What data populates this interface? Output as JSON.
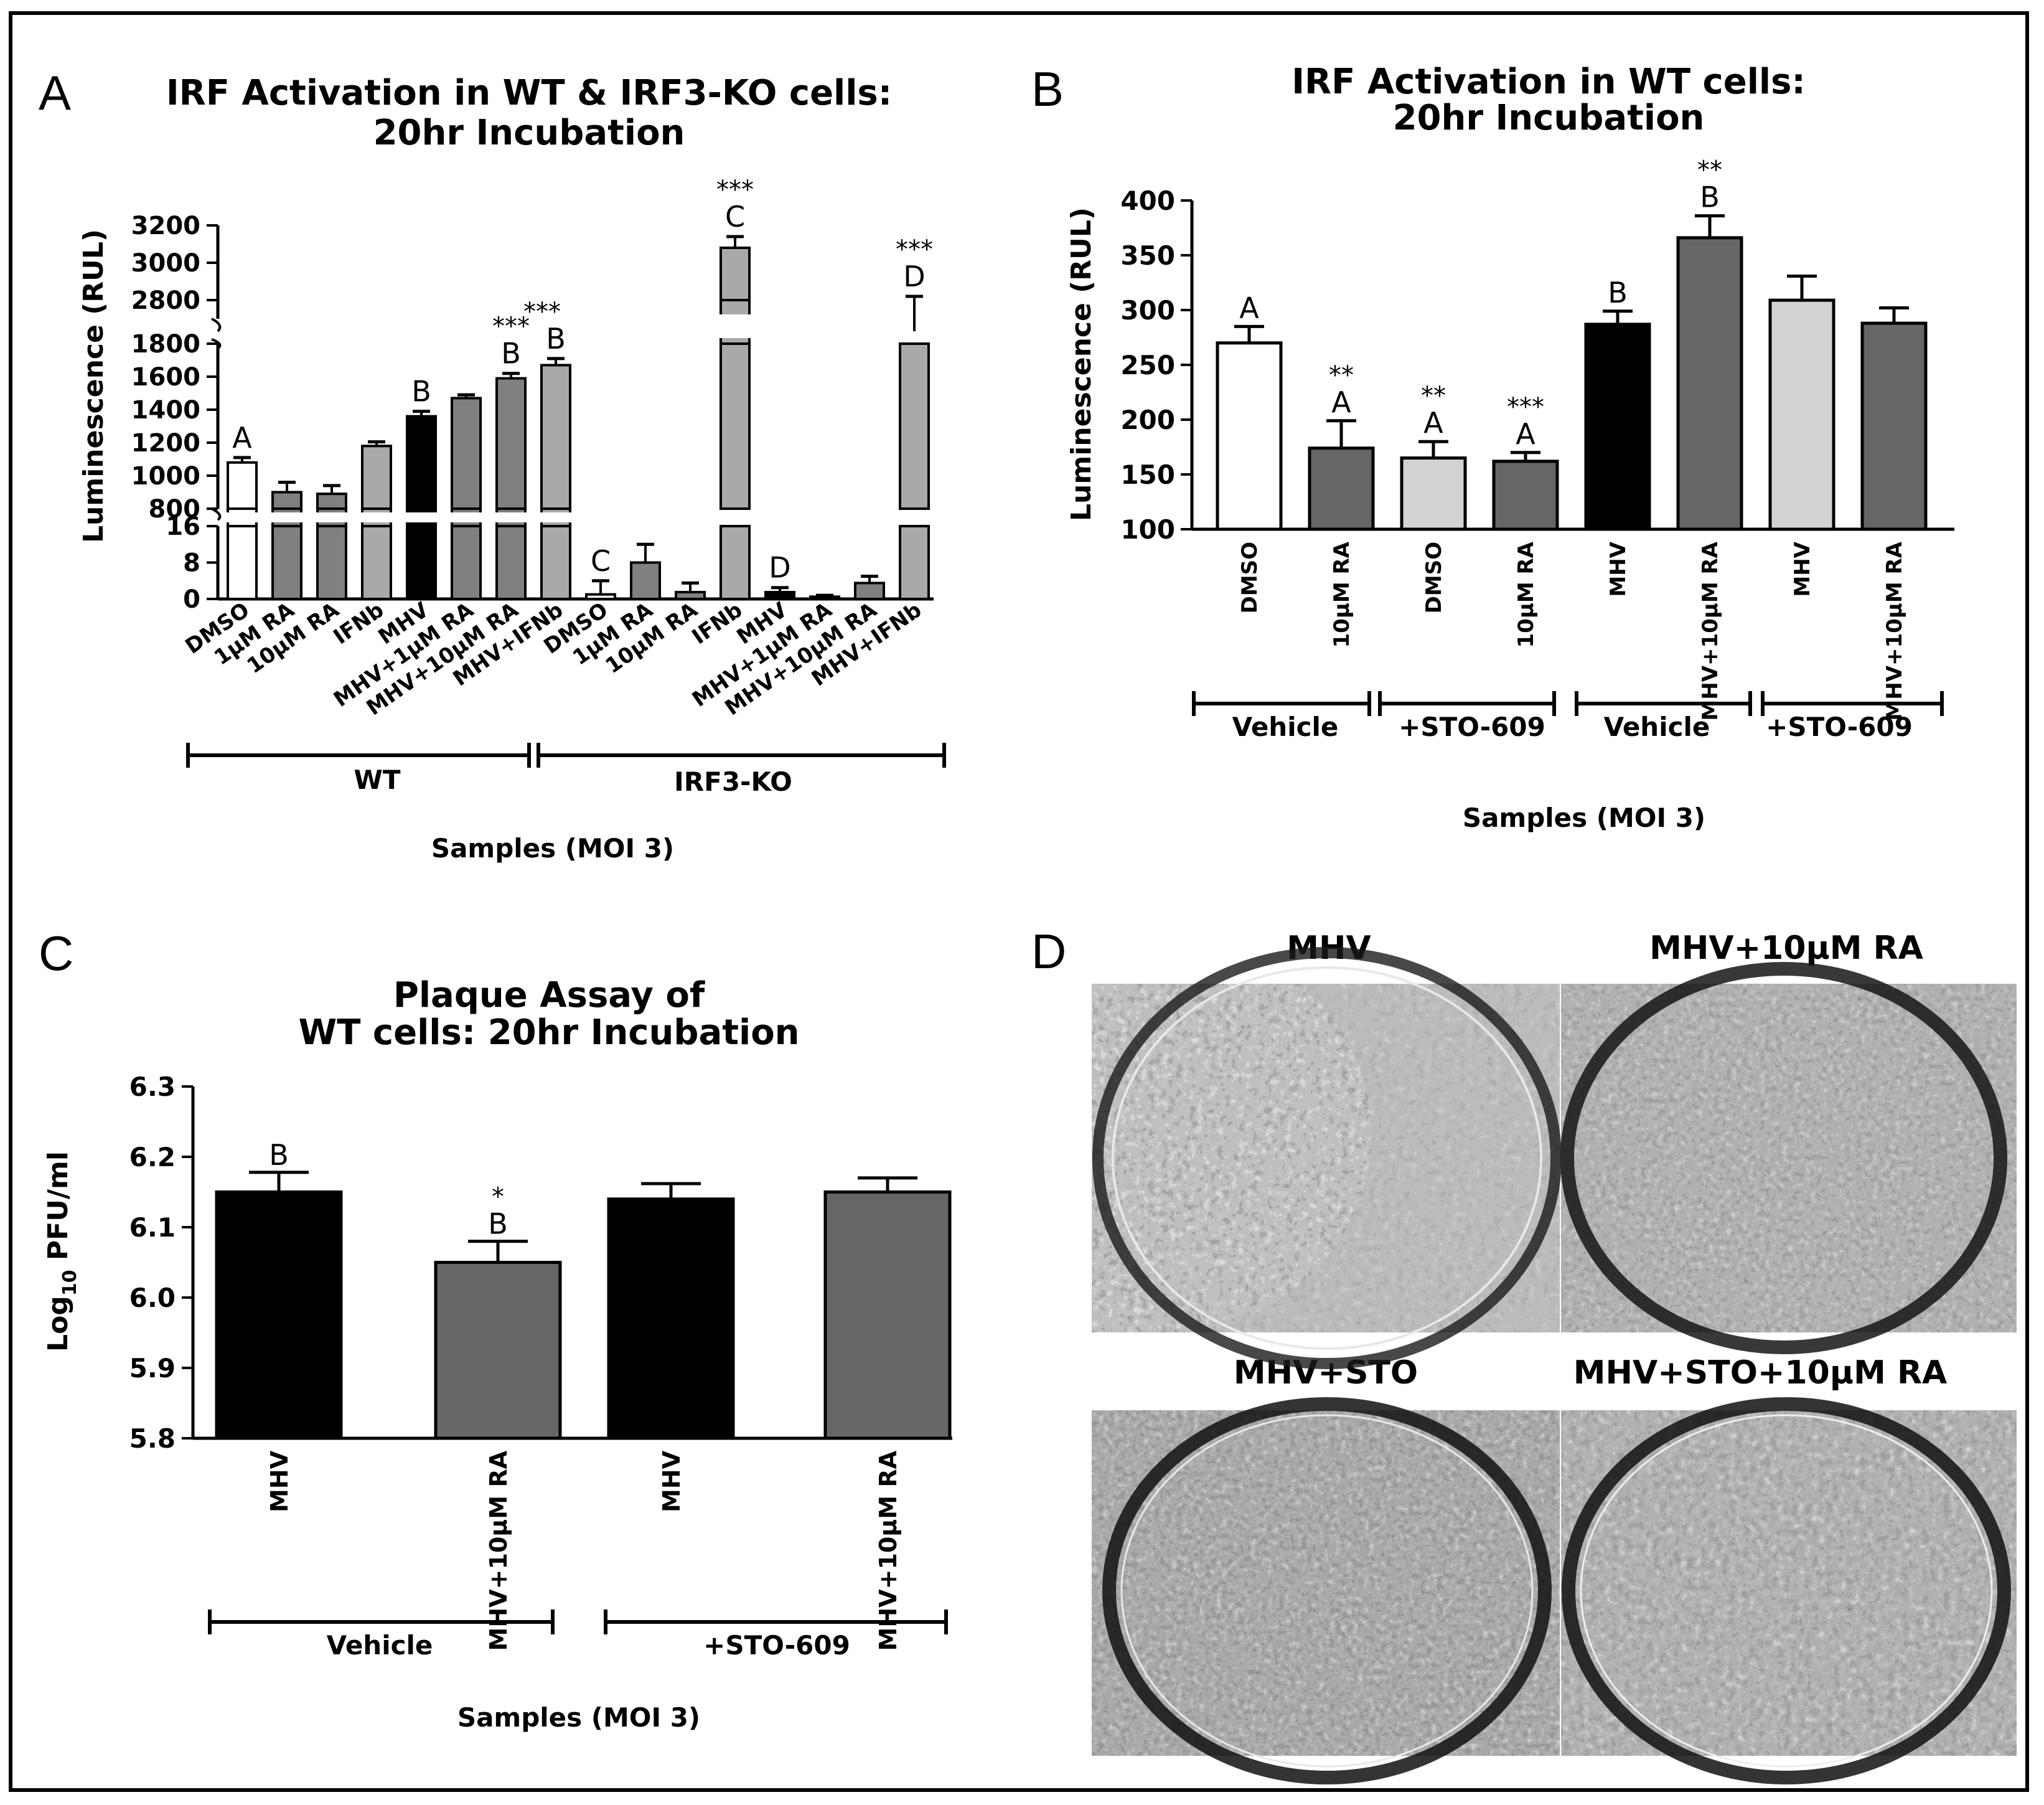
{
  "panels": {
    "A": {
      "letter": "A",
      "title_lines": [
        "IRF Activation in WT & IRF3-KO cells:",
        "20hr Incubation"
      ],
      "ylabel": "Luminescence (RUL)",
      "xlabel": "Samples (MOI 3)",
      "groups": [
        "WT",
        "IRF3-KO"
      ],
      "y_ticks_top": [
        "3200",
        "3000",
        "2800"
      ],
      "y_ticks_mid": [
        "1800",
        "1600",
        "1400",
        "1200",
        "1000",
        "800"
      ],
      "y_ticks_low": [
        "16",
        "8",
        "0"
      ]
    },
    "B": {
      "letter": "B",
      "title_lines": [
        "IRF Activation in WT cells:",
        "20hr Incubation"
      ],
      "ylabel": "Luminescence (RUL)",
      "xlabel": "Samples (MOI 3)",
      "groups": [
        "Vehicle",
        "+STO-609",
        "Vehicle",
        "+STO-609"
      ],
      "y_ticks": [
        "400",
        "350",
        "300",
        "250",
        "200",
        "150",
        "100"
      ]
    },
    "C": {
      "letter": "C",
      "title_lines": [
        "Plaque Assay of",
        "WT cells: 20hr Incubation"
      ],
      "ylabel_main": "Log",
      "ylabel_sub": "10",
      "ylabel_tail": " PFU/ml",
      "xlabel": "Samples (MOI 3)",
      "groups": [
        "Vehicle",
        "+STO-609"
      ],
      "y_ticks": [
        "6.3",
        "6.2",
        "6.1",
        "6.0",
        "5.9",
        "5.8"
      ]
    },
    "D": {
      "letter": "D",
      "plates": [
        "MHV",
        "MHV+10μM RA",
        "MHV+STO",
        "MHV+STO+10μM RA"
      ]
    }
  },
  "chart_data": [
    {
      "panel": "A",
      "type": "bar",
      "title": "IRF Activation in WT & IRF3-KO cells: 20hr Incubation",
      "ylabel": "Luminescence (RUL)",
      "xlabel": "Samples (MOI 3)",
      "axis_breaks": [
        [
          16,
          800
        ],
        [
          1800,
          2800
        ]
      ],
      "categories": [
        "DMSO",
        "1μM RA",
        "10μM RA",
        "IFNb",
        "MHV",
        "MHV+1μM RA",
        "MHV+10μM RA",
        "MHV+IFNb",
        "DMSO",
        "1μM RA",
        "10μM RA",
        "IFNb",
        "MHV",
        "MHV+1μM RA",
        "MHV+10μM RA",
        "MHV+IFNb"
      ],
      "groups": [
        "WT",
        "WT",
        "WT",
        "WT",
        "WT",
        "WT",
        "WT",
        "WT",
        "IRF3-KO",
        "IRF3-KO",
        "IRF3-KO",
        "IRF3-KO",
        "IRF3-KO",
        "IRF3-KO",
        "IRF3-KO",
        "IRF3-KO"
      ],
      "values": [
        1080,
        900,
        890,
        1180,
        1360,
        1470,
        1590,
        1670,
        1,
        8,
        1.5,
        3080,
        1.5,
        0.5,
        3.5,
        2760
      ],
      "errors": [
        30,
        60,
        50,
        25,
        30,
        20,
        30,
        40,
        3,
        4,
        2,
        60,
        1,
        0.3,
        1.5,
        60
      ],
      "colors": [
        "#ffffff",
        "#808080",
        "#808080",
        "#a9a9a9",
        "#000000",
        "#808080",
        "#808080",
        "#a9a9a9",
        "#ffffff",
        "#808080",
        "#808080",
        "#a9a9a9",
        "#000000",
        "#808080",
        "#808080",
        "#a9a9a9"
      ],
      "letters": [
        "A",
        "",
        "",
        "",
        "B",
        "",
        "B",
        "B",
        "C",
        "",
        "",
        "C",
        "D",
        "",
        "",
        "D"
      ],
      "significance": [
        "",
        "",
        "",
        "",
        "",
        "",
        "***",
        "***",
        "",
        "",
        "",
        "***",
        "",
        "",
        "",
        "***"
      ]
    },
    {
      "panel": "B",
      "type": "bar",
      "title": "IRF Activation in WT cells: 20hr Incubation",
      "ylabel": "Luminescence (RUL)",
      "xlabel": "Samples (MOI 3)",
      "ylim": [
        100,
        400
      ],
      "categories": [
        "DMSO",
        "10μM RA",
        "DMSO",
        "10μM RA",
        "MHV",
        "MHV+10μM RA",
        "MHV",
        "MHV+10μM RA"
      ],
      "groups": [
        "Vehicle",
        "Vehicle",
        "+STO-609",
        "+STO-609",
        "Vehicle",
        "Vehicle",
        "+STO-609",
        "+STO-609"
      ],
      "values": [
        270,
        174,
        165,
        162,
        287,
        366,
        309,
        288
      ],
      "errors": [
        15,
        25,
        15,
        8,
        12,
        20,
        22,
        14
      ],
      "colors": [
        "#ffffff",
        "#666666",
        "#d3d3d3",
        "#666666",
        "#000000",
        "#666666",
        "#d3d3d3",
        "#666666"
      ],
      "letters": [
        "A",
        "A",
        "A",
        "A",
        "B",
        "B",
        "",
        ""
      ],
      "significance": [
        "",
        "**",
        "**",
        "***",
        "",
        "**",
        "",
        ""
      ]
    },
    {
      "panel": "C",
      "type": "bar",
      "title": "Plaque Assay of WT cells: 20hr Incubation",
      "ylabel": "Log10 PFU/ml",
      "xlabel": "Samples (MOI 3)",
      "ylim": [
        5.8,
        6.3
      ],
      "categories": [
        "MHV",
        "MHV+10μM RA",
        "MHV",
        "MHV+10μM RA"
      ],
      "groups": [
        "Vehicle",
        "Vehicle",
        "+STO-609",
        "+STO-609"
      ],
      "values": [
        6.15,
        6.05,
        6.14,
        6.15
      ],
      "errors": [
        0.028,
        0.03,
        0.022,
        0.02
      ],
      "colors": [
        "#000000",
        "#666666",
        "#000000",
        "#666666"
      ],
      "letters": [
        "B",
        "B",
        "",
        ""
      ],
      "significance": [
        "",
        "*",
        "",
        ""
      ]
    }
  ]
}
